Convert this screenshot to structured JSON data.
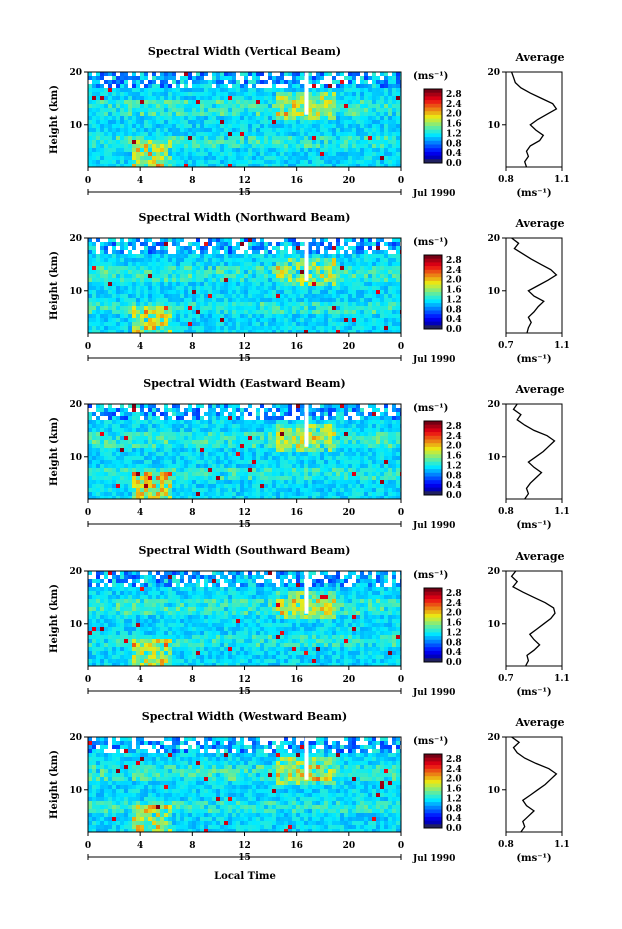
{
  "figure": {
    "xlabel": "Local Time"
  },
  "chart_data": [
    {
      "type": "heatmap",
      "title": "Spectral Width (Vertical Beam)",
      "ylabel": "Height (km)",
      "y_ticks": [
        10,
        20
      ],
      "ylim": [
        2,
        20
      ],
      "x_ticks": [
        "0",
        "4",
        "8",
        "12",
        "16",
        "20",
        "0"
      ],
      "xlim": [
        0,
        24
      ],
      "day_label": "15",
      "month_label": "Jul 1990",
      "colorbar": {
        "unit": "(ms⁻¹)",
        "ticks": [
          "2.8",
          "2.4",
          "2.0",
          "1.6",
          "1.2",
          "0.8",
          "0.4",
          "0.0"
        ],
        "range": [
          0,
          3.0
        ]
      },
      "average": {
        "title": "Average",
        "xunit": "(ms⁻¹)",
        "x_ticks": [
          "0.8",
          "1.1"
        ],
        "xlim": [
          0.8,
          1.1
        ],
        "y_ticks": [
          10,
          20
        ],
        "ylim": [
          2,
          20
        ],
        "profile": [
          [
            0.91,
            2
          ],
          [
            0.9,
            3
          ],
          [
            0.92,
            4
          ],
          [
            0.91,
            5
          ],
          [
            0.93,
            6
          ],
          [
            0.98,
            7
          ],
          [
            1.0,
            8
          ],
          [
            0.96,
            9
          ],
          [
            0.93,
            10
          ],
          [
            0.97,
            11
          ],
          [
            1.02,
            12
          ],
          [
            1.07,
            13
          ],
          [
            1.05,
            14
          ],
          [
            0.99,
            15
          ],
          [
            0.93,
            16
          ],
          [
            0.88,
            17
          ],
          [
            0.85,
            18
          ],
          [
            0.84,
            19
          ],
          [
            0.83,
            20
          ]
        ]
      }
    },
    {
      "type": "heatmap",
      "title": "Spectral Width (Northward Beam)",
      "ylabel": "Height (km)",
      "y_ticks": [
        10,
        20
      ],
      "ylim": [
        2,
        20
      ],
      "x_ticks": [
        "0",
        "4",
        "8",
        "12",
        "16",
        "20",
        "0"
      ],
      "xlim": [
        0,
        24
      ],
      "day_label": "15",
      "month_label": "Jul 1990",
      "colorbar": {
        "unit": "(ms⁻¹)",
        "ticks": [
          "2.8",
          "2.4",
          "2.0",
          "1.6",
          "1.2",
          "0.8",
          "0.4",
          "0.0"
        ],
        "range": [
          0,
          3.0
        ]
      },
      "average": {
        "title": "Average",
        "xunit": "(ms⁻¹)",
        "x_ticks": [
          "0.7",
          "1.1"
        ],
        "xlim": [
          0.7,
          1.1
        ],
        "y_ticks": [
          10,
          20
        ],
        "ylim": [
          2,
          20
        ],
        "profile": [
          [
            0.85,
            2
          ],
          [
            0.86,
            3
          ],
          [
            0.88,
            4
          ],
          [
            0.86,
            5
          ],
          [
            0.9,
            6
          ],
          [
            0.93,
            7
          ],
          [
            0.97,
            8
          ],
          [
            0.9,
            9
          ],
          [
            0.86,
            10
          ],
          [
            0.93,
            11
          ],
          [
            1.0,
            12
          ],
          [
            1.06,
            13
          ],
          [
            1.02,
            14
          ],
          [
            0.95,
            15
          ],
          [
            0.88,
            16
          ],
          [
            0.82,
            17
          ],
          [
            0.76,
            18
          ],
          [
            0.79,
            19
          ],
          [
            0.74,
            20
          ]
        ]
      }
    },
    {
      "type": "heatmap",
      "title": "Spectral Width (Eastward Beam)",
      "ylabel": "Height (km)",
      "y_ticks": [
        10,
        20
      ],
      "ylim": [
        2,
        20
      ],
      "x_ticks": [
        "0",
        "4",
        "8",
        "12",
        "16",
        "20",
        "0"
      ],
      "xlim": [
        0,
        24
      ],
      "day_label": "15",
      "month_label": "Jul 1990",
      "colorbar": {
        "unit": "(ms⁻¹)",
        "ticks": [
          "2.8",
          "2.4",
          "2.0",
          "1.6",
          "1.2",
          "0.8",
          "0.4",
          "0.0"
        ],
        "range": [
          0,
          3.0
        ]
      },
      "average": {
        "title": "Average",
        "xunit": "(ms⁻¹)",
        "x_ticks": [
          "0.8",
          "1.1"
        ],
        "xlim": [
          0.8,
          1.1
        ],
        "y_ticks": [
          10,
          20
        ],
        "ylim": [
          2,
          20
        ],
        "profile": [
          [
            0.9,
            2
          ],
          [
            0.92,
            3
          ],
          [
            0.91,
            4
          ],
          [
            0.93,
            5
          ],
          [
            0.96,
            6
          ],
          [
            0.99,
            7
          ],
          [
            0.95,
            8
          ],
          [
            0.92,
            9
          ],
          [
            0.96,
            10
          ],
          [
            1.0,
            11
          ],
          [
            1.03,
            12
          ],
          [
            1.06,
            13
          ],
          [
            1.02,
            14
          ],
          [
            0.95,
            15
          ],
          [
            0.9,
            16
          ],
          [
            0.86,
            17
          ],
          [
            0.88,
            18
          ],
          [
            0.84,
            19
          ],
          [
            0.86,
            20
          ]
        ]
      }
    },
    {
      "type": "heatmap",
      "title": "Spectral Width (Southward Beam)",
      "ylabel": "Height (km)",
      "y_ticks": [
        10,
        20
      ],
      "ylim": [
        2,
        20
      ],
      "x_ticks": [
        "0",
        "4",
        "8",
        "12",
        "16",
        "20",
        "0"
      ],
      "xlim": [
        0,
        24
      ],
      "day_label": "15",
      "month_label": "Jul 1990",
      "colorbar": {
        "unit": "(ms⁻¹)",
        "ticks": [
          "2.8",
          "2.4",
          "2.0",
          "1.6",
          "1.2",
          "0.8",
          "0.4",
          "0.0"
        ],
        "range": [
          0,
          3.0
        ]
      },
      "average": {
        "title": "Average",
        "xunit": "(ms⁻¹)",
        "x_ticks": [
          "0.7",
          "1.1"
        ],
        "xlim": [
          0.7,
          1.1
        ],
        "y_ticks": [
          10,
          20
        ],
        "ylim": [
          2,
          20
        ],
        "profile": [
          [
            0.84,
            2
          ],
          [
            0.86,
            3
          ],
          [
            0.85,
            4
          ],
          [
            0.9,
            5
          ],
          [
            0.94,
            6
          ],
          [
            0.9,
            7
          ],
          [
            0.87,
            8
          ],
          [
            0.92,
            9
          ],
          [
            0.97,
            10
          ],
          [
            1.02,
            11
          ],
          [
            1.05,
            12
          ],
          [
            1.04,
            13
          ],
          [
            0.98,
            14
          ],
          [
            0.9,
            15
          ],
          [
            0.82,
            16
          ],
          [
            0.75,
            17
          ],
          [
            0.78,
            18
          ],
          [
            0.74,
            19
          ],
          [
            0.77,
            20
          ]
        ]
      }
    },
    {
      "type": "heatmap",
      "title": "Spectral Width (Westward Beam)",
      "ylabel": "Height (km)",
      "y_ticks": [
        10,
        20
      ],
      "ylim": [
        2,
        20
      ],
      "x_ticks": [
        "0",
        "4",
        "8",
        "12",
        "16",
        "20",
        "0"
      ],
      "xlim": [
        0,
        24
      ],
      "day_label": "15",
      "month_label": "Jul 1990",
      "colorbar": {
        "unit": "(ms⁻¹)",
        "ticks": [
          "2.8",
          "2.4",
          "2.0",
          "1.6",
          "1.2",
          "0.8",
          "0.4",
          "0.0"
        ],
        "range": [
          0,
          3.0
        ]
      },
      "average": {
        "title": "Average",
        "xunit": "(ms⁻¹)",
        "x_ticks": [
          "0.8",
          "1.1"
        ],
        "xlim": [
          0.8,
          1.1
        ],
        "y_ticks": [
          10,
          20
        ],
        "ylim": [
          2,
          20
        ],
        "profile": [
          [
            0.88,
            2
          ],
          [
            0.9,
            3
          ],
          [
            0.89,
            4
          ],
          [
            0.92,
            5
          ],
          [
            0.95,
            6
          ],
          [
            0.91,
            7
          ],
          [
            0.89,
            8
          ],
          [
            0.93,
            9
          ],
          [
            0.97,
            10
          ],
          [
            1.01,
            11
          ],
          [
            1.04,
            12
          ],
          [
            1.07,
            13
          ],
          [
            1.03,
            14
          ],
          [
            0.96,
            15
          ],
          [
            0.9,
            16
          ],
          [
            0.86,
            17
          ],
          [
            0.84,
            18
          ],
          [
            0.87,
            19
          ],
          [
            0.83,
            20
          ]
        ]
      }
    }
  ]
}
